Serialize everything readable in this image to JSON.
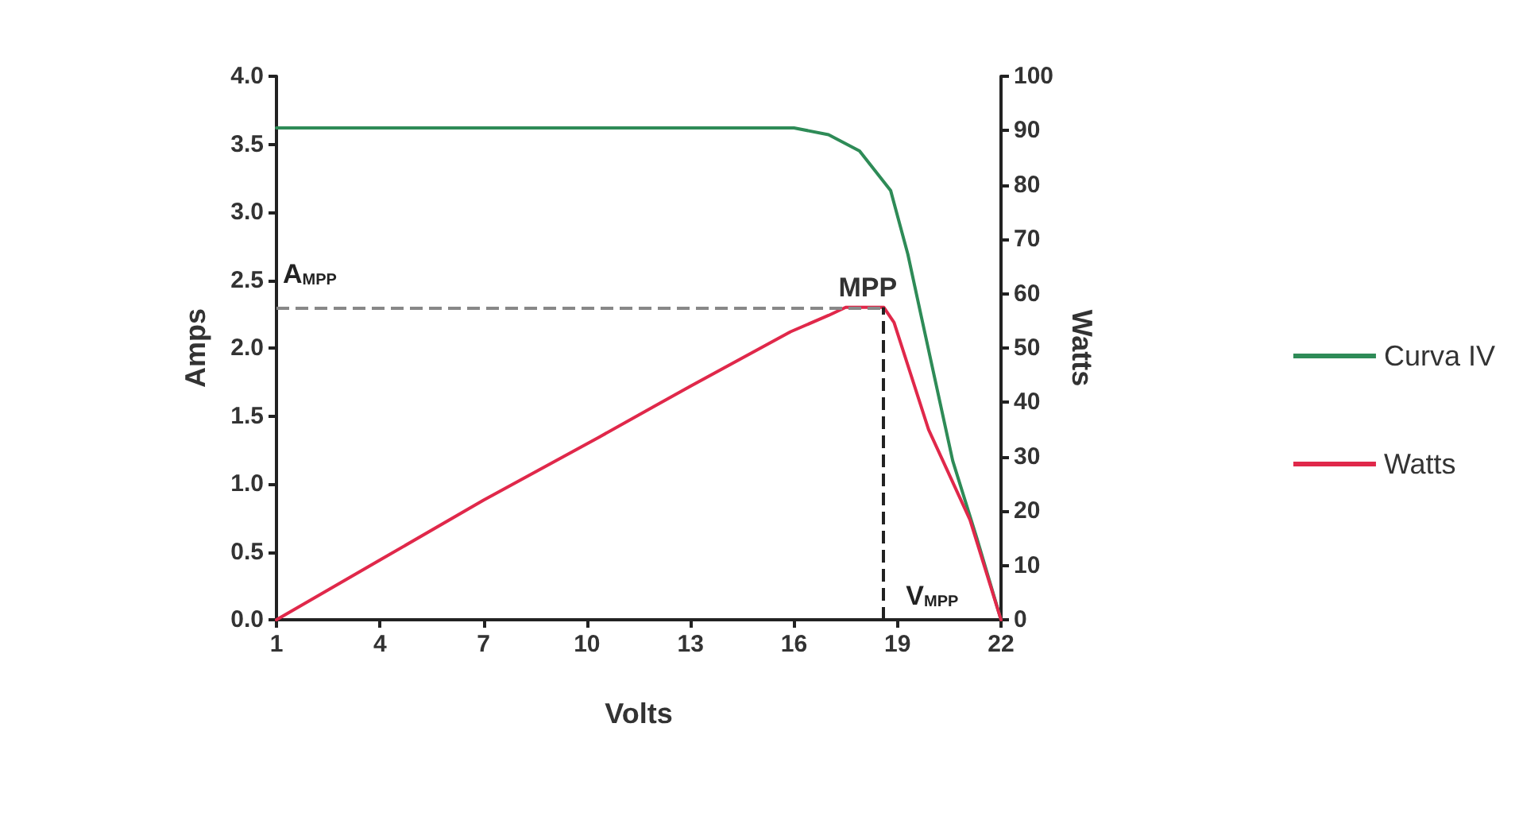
{
  "chart_data": {
    "type": "line",
    "xlabel": "Volts",
    "ylabel": "Amps",
    "y2label": "Watts",
    "xlim": [
      1,
      22
    ],
    "xticks": [
      1,
      4,
      7,
      10,
      13,
      16,
      19,
      22
    ],
    "ylim": [
      0,
      4
    ],
    "yticks": [
      {
        "value": 0,
        "label": "0.0"
      },
      {
        "value": 0.5,
        "label": "0.5"
      },
      {
        "value": 1,
        "label": "1.0"
      },
      {
        "value": 1.5,
        "label": "1.5"
      },
      {
        "value": 2,
        "label": "2.0"
      },
      {
        "value": 2.5,
        "label": "2.5"
      },
      {
        "value": 3,
        "label": "3.0"
      },
      {
        "value": 3.5,
        "label": "3.5"
      },
      {
        "value": 4,
        "label": "4.0"
      }
    ],
    "y2lim": [
      0,
      100
    ],
    "y2ticks": [
      0,
      10,
      20,
      30,
      40,
      50,
      60,
      70,
      80,
      90,
      100
    ],
    "series": [
      {
        "name": "Curva IV",
        "color": "#2e8b57",
        "x": [
          1,
          4,
          7,
          10,
          13,
          16,
          17,
          17.9,
          18.8,
          19.3,
          19.7,
          20.6,
          21.3,
          22
        ],
        "values": [
          3.62,
          3.62,
          3.62,
          3.62,
          3.62,
          3.62,
          3.57,
          3.45,
          3.16,
          2.69,
          2.22,
          1.17,
          0.6,
          0
        ]
      },
      {
        "name": "Watts",
        "color": "#e0284a",
        "axis": "y2",
        "x": [
          1,
          4,
          7,
          10.35,
          13,
          15.9,
          17,
          17.5,
          18.6,
          18.9,
          19.9,
          21.1,
          22
        ],
        "values": [
          0,
          11,
          22,
          33.6,
          43,
          53,
          56,
          57.5,
          57.5,
          54.7,
          35,
          18.4,
          0
        ]
      }
    ],
    "ref_lines": [
      {
        "axis": "y",
        "value": 2.3,
        "label": "A$_{MPP}$",
        "color": "#888888",
        "line_style": "dashed"
      },
      {
        "axis": "x",
        "value": 18.6,
        "label": "V$_{MPP}$",
        "color": "#222222",
        "line_style": "dashed"
      }
    ],
    "annotations": [
      {
        "text": "MPP",
        "x": 18.6,
        "y": 2.3
      }
    ],
    "legend": "right",
    "grid": false,
    "marker": "none",
    "line_style": "solid"
  }
}
